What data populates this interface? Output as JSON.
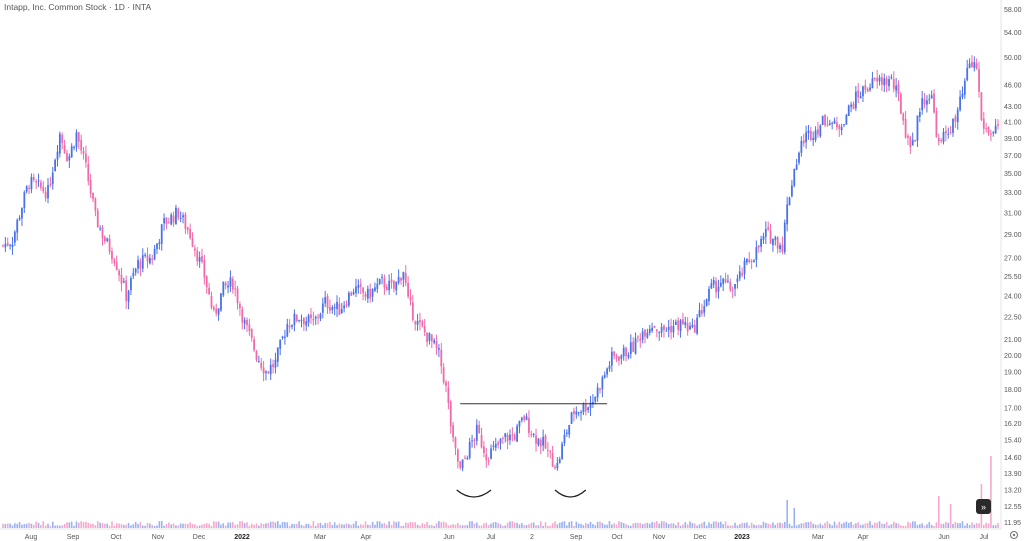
{
  "chart_data": {
    "type": "candlestick",
    "title": "Intapp, Inc. Common Stock · 1D · INTA",
    "colors": {
      "up": "#4a72e8",
      "down": "#f06aa9",
      "vol_up": "#9bb2f0",
      "vol_down": "#f6a8cd",
      "axis_text": "#555555",
      "resistance": "#333333"
    },
    "y_axis": {
      "scale": "log",
      "ticks": [
        11.95,
        12.55,
        13.2,
        13.9,
        14.6,
        15.4,
        16.2,
        17.0,
        18.0,
        19.0,
        20.0,
        21.0,
        22.5,
        24.0,
        25.5,
        27.0,
        29.0,
        31.0,
        33.0,
        35.0,
        37.0,
        39.0,
        41.0,
        43.0,
        46.0,
        50.0,
        54.0,
        58.0
      ],
      "labels": [
        "11.95",
        "12.55",
        "13.20",
        "13.90",
        "14.60",
        "15.40",
        "16.20",
        "17.00",
        "18.00",
        "19.00",
        "20.00",
        "21.00",
        "22.50",
        "24.00",
        "25.50",
        "27.00",
        "29.00",
        "31.00",
        "33.00",
        "35.00",
        "37.00",
        "39.00",
        "41.00",
        "43.00",
        "46.00",
        "50.00",
        "54.00",
        "58.00"
      ]
    },
    "x_axis": {
      "labels": [
        "Aug",
        "Sep",
        "Oct",
        "Nov",
        "Dec",
        "2022",
        "Mar",
        "Apr",
        "Jun",
        "Jul",
        "2",
        "Sep",
        "Oct",
        "Nov",
        "Dec",
        "2023",
        "Mar",
        "Apr",
        "Jun",
        "Jul"
      ],
      "bold": [
        "2022",
        "2023"
      ]
    },
    "price_path": [
      {
        "d": 0,
        "p": 28.0
      },
      {
        "d": 8,
        "p": 28.5
      },
      {
        "d": 22,
        "p": 34.0
      },
      {
        "d": 38,
        "p": 33.0
      },
      {
        "d": 48,
        "p": 39.5
      },
      {
        "d": 55,
        "p": 36.5
      },
      {
        "d": 62,
        "p": 39.5
      },
      {
        "d": 70,
        "p": 35.5
      },
      {
        "d": 78,
        "p": 30.5
      },
      {
        "d": 86,
        "p": 28.5
      },
      {
        "d": 94,
        "p": 27.0
      },
      {
        "d": 104,
        "p": 24.0
      },
      {
        "d": 114,
        "p": 26.5
      },
      {
        "d": 126,
        "p": 27.0
      },
      {
        "d": 136,
        "p": 30.0
      },
      {
        "d": 148,
        "p": 31.0
      },
      {
        "d": 158,
        "p": 29.0
      },
      {
        "d": 170,
        "p": 25.5
      },
      {
        "d": 178,
        "p": 22.5
      },
      {
        "d": 186,
        "p": 24.5
      },
      {
        "d": 194,
        "p": 25.0
      },
      {
        "d": 204,
        "p": 22.0
      },
      {
        "d": 214,
        "p": 20.0
      },
      {
        "d": 222,
        "p": 19.0
      },
      {
        "d": 230,
        "p": 19.5
      },
      {
        "d": 240,
        "p": 22.0
      },
      {
        "d": 250,
        "p": 22.5
      },
      {
        "d": 262,
        "p": 22.0
      },
      {
        "d": 272,
        "p": 23.5
      },
      {
        "d": 284,
        "p": 23.0
      },
      {
        "d": 296,
        "p": 24.5
      },
      {
        "d": 308,
        "p": 24.0
      },
      {
        "d": 320,
        "p": 25.0
      },
      {
        "d": 330,
        "p": 24.5
      },
      {
        "d": 338,
        "p": 26.0
      },
      {
        "d": 342,
        "p": 23.5
      },
      {
        "d": 350,
        "p": 22.0
      },
      {
        "d": 360,
        "p": 21.0
      },
      {
        "d": 368,
        "p": 20.0
      },
      {
        "d": 374,
        "p": 18.0
      },
      {
        "d": 380,
        "p": 15.2
      },
      {
        "d": 386,
        "p": 14.0
      },
      {
        "d": 392,
        "p": 14.8
      },
      {
        "d": 400,
        "p": 15.8
      },
      {
        "d": 408,
        "p": 14.7
      },
      {
        "d": 416,
        "p": 15.0
      },
      {
        "d": 424,
        "p": 15.5
      },
      {
        "d": 432,
        "p": 15.6
      },
      {
        "d": 440,
        "p": 16.5
      },
      {
        "d": 448,
        "p": 15.6
      },
      {
        "d": 456,
        "p": 15.2
      },
      {
        "d": 462,
        "p": 14.6
      },
      {
        "d": 468,
        "p": 14.2
      },
      {
        "d": 474,
        "p": 15.5
      },
      {
        "d": 482,
        "p": 16.8
      },
      {
        "d": 490,
        "p": 17.0
      },
      {
        "d": 498,
        "p": 17.4
      },
      {
        "d": 506,
        "p": 18.5
      },
      {
        "d": 514,
        "p": 19.8
      },
      {
        "d": 522,
        "p": 20.0
      },
      {
        "d": 532,
        "p": 20.5
      },
      {
        "d": 540,
        "p": 21.5
      },
      {
        "d": 548,
        "p": 22.0
      },
      {
        "d": 556,
        "p": 21.5
      },
      {
        "d": 564,
        "p": 21.8
      },
      {
        "d": 574,
        "p": 22.0
      },
      {
        "d": 582,
        "p": 21.5
      },
      {
        "d": 590,
        "p": 23.0
      },
      {
        "d": 598,
        "p": 24.5
      },
      {
        "d": 606,
        "p": 25.0
      },
      {
        "d": 614,
        "p": 24.5
      },
      {
        "d": 620,
        "p": 25.0
      },
      {
        "d": 628,
        "p": 26.5
      },
      {
        "d": 636,
        "p": 27.5
      },
      {
        "d": 644,
        "p": 29.0
      },
      {
        "d": 652,
        "p": 28.5
      },
      {
        "d": 658,
        "p": 28.0
      },
      {
        "d": 662,
        "p": 31.5
      },
      {
        "d": 668,
        "p": 35.5
      },
      {
        "d": 676,
        "p": 39.0
      },
      {
        "d": 686,
        "p": 40.0
      },
      {
        "d": 696,
        "p": 41.5
      },
      {
        "d": 704,
        "p": 40.0
      },
      {
        "d": 712,
        "p": 42.0
      },
      {
        "d": 722,
        "p": 44.5
      },
      {
        "d": 732,
        "p": 46.0
      },
      {
        "d": 742,
        "p": 46.5
      },
      {
        "d": 750,
        "p": 46.5
      },
      {
        "d": 756,
        "p": 44.0
      },
      {
        "d": 764,
        "p": 38.5
      },
      {
        "d": 770,
        "p": 39.0
      },
      {
        "d": 774,
        "p": 43.0
      },
      {
        "d": 780,
        "p": 44.5
      },
      {
        "d": 784,
        "p": 44.0
      },
      {
        "d": 790,
        "p": 38.0
      },
      {
        "d": 798,
        "p": 40.0
      },
      {
        "d": 804,
        "p": 41.0
      },
      {
        "d": 810,
        "p": 44.5
      },
      {
        "d": 816,
        "p": 49.0
      },
      {
        "d": 822,
        "p": 48.5
      },
      {
        "d": 826,
        "p": 41.0
      },
      {
        "d": 832,
        "p": 39.5
      },
      {
        "d": 840,
        "p": 40.5
      }
    ],
    "volume_spikes": [
      {
        "d": 662,
        "v": 7
      },
      {
        "d": 668,
        "v": 5
      },
      {
        "d": 790,
        "v": 8
      },
      {
        "d": 795,
        "v": 32
      },
      {
        "d": 800,
        "v": 6
      },
      {
        "d": 826,
        "v": 11
      },
      {
        "d": 834,
        "v": 18
      }
    ],
    "resistance_line": {
      "start_day": 386,
      "end_day": 510,
      "price": 17.2
    },
    "cup_arcs": [
      {
        "start_day": 383,
        "end_day": 412
      },
      {
        "start_day": 466,
        "end_day": 492
      }
    ]
  }
}
